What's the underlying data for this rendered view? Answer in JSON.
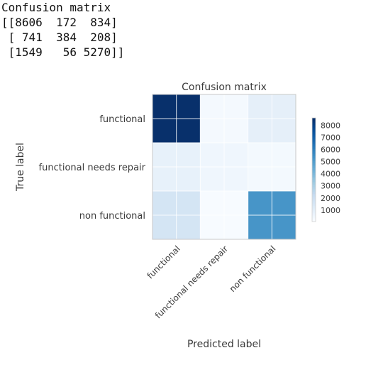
{
  "console": {
    "heading": "Confusion matrix",
    "lines": [
      "[[8606  172  834]",
      " [ 741  384  208]",
      " [1549   56 5270]]"
    ]
  },
  "chart_data": {
    "type": "heatmap",
    "title": "Confusion matrix",
    "xlabel": "Predicted label",
    "ylabel": "True label",
    "categories": [
      "functional",
      "functional needs repair",
      "non functional"
    ],
    "matrix": [
      [
        8606,
        172,
        834
      ],
      [
        741,
        384,
        208
      ],
      [
        1549,
        56,
        5270
      ]
    ],
    "colormap": "Blues",
    "colorbar": {
      "ticks": [
        1000,
        2000,
        3000,
        4000,
        5000,
        6000,
        7000,
        8000
      ],
      "labels": [
        "1000",
        "2000",
        "3000",
        "4000",
        "5000",
        "6000",
        "7000",
        "8000"
      ],
      "range": [
        56,
        8606
      ]
    },
    "grid": true
  }
}
